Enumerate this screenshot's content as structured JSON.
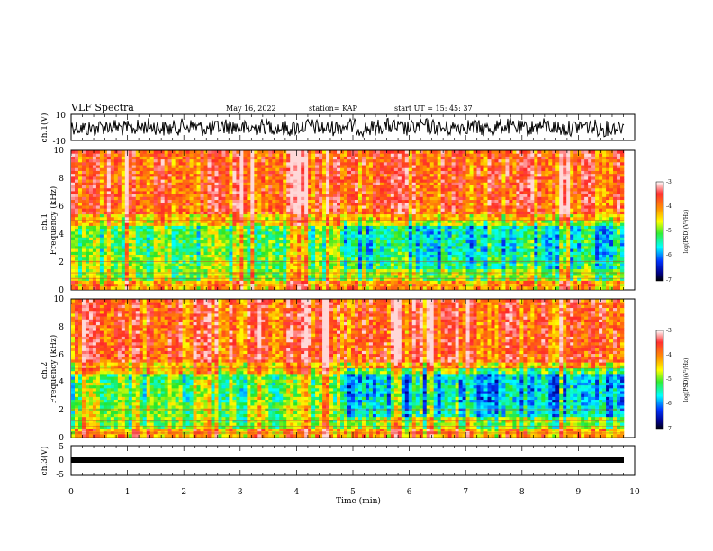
{
  "header": {
    "title": "VLF Spectra",
    "date": "May 16, 2022",
    "station": "station= KAP",
    "start": "start  UT  =   15: 45: 37"
  },
  "chart_data": [
    {
      "type": "line",
      "ylabel": "ch.1(V)",
      "ylim": [
        -10,
        10
      ],
      "y_ticks": [
        "10",
        "-10"
      ],
      "xlim": [
        0,
        10
      ],
      "description_values": {
        "x_end_min": 9.8,
        "typical_range_v": [
          -4,
          4
        ]
      }
    },
    {
      "type": "heatmap",
      "ylabel": "ch.1 Frequency (kHz)",
      "ylim": [
        0,
        10
      ],
      "y_ticks": [
        "0",
        "2",
        "4",
        "6",
        "8",
        "10"
      ],
      "xlim": [
        0,
        10
      ],
      "colorbar": {
        "label": "log(PSD)(V²/Hz)",
        "range": [
          -7,
          -3
        ],
        "ticks": [
          "-3",
          "-4",
          "-5",
          "-6",
          "-7"
        ]
      }
    },
    {
      "type": "heatmap",
      "ylabel": "ch.2 Frequency (kHz)",
      "ylim": [
        0,
        10
      ],
      "y_ticks": [
        "0",
        "2",
        "4",
        "6",
        "8",
        "10"
      ],
      "xlim": [
        0,
        10
      ],
      "colorbar": {
        "label": "log(PSD)(V²/Hz)",
        "range": [
          -7,
          -3
        ],
        "ticks": [
          "-3",
          "-4",
          "-5",
          "-6",
          "-7"
        ]
      }
    },
    {
      "type": "line",
      "ylabel": "ch.3(V)",
      "ylim": [
        -5,
        5
      ],
      "y_ticks": [
        "5",
        "0",
        "-5"
      ],
      "xlim": [
        0,
        10
      ],
      "x": [
        0,
        9.8
      ],
      "y": [
        0,
        0
      ],
      "xlabel": "Time  (min)",
      "x_ticks": [
        "0",
        "1",
        "2",
        "3",
        "4",
        "5",
        "6",
        "7",
        "8",
        "9",
        "10"
      ]
    }
  ]
}
